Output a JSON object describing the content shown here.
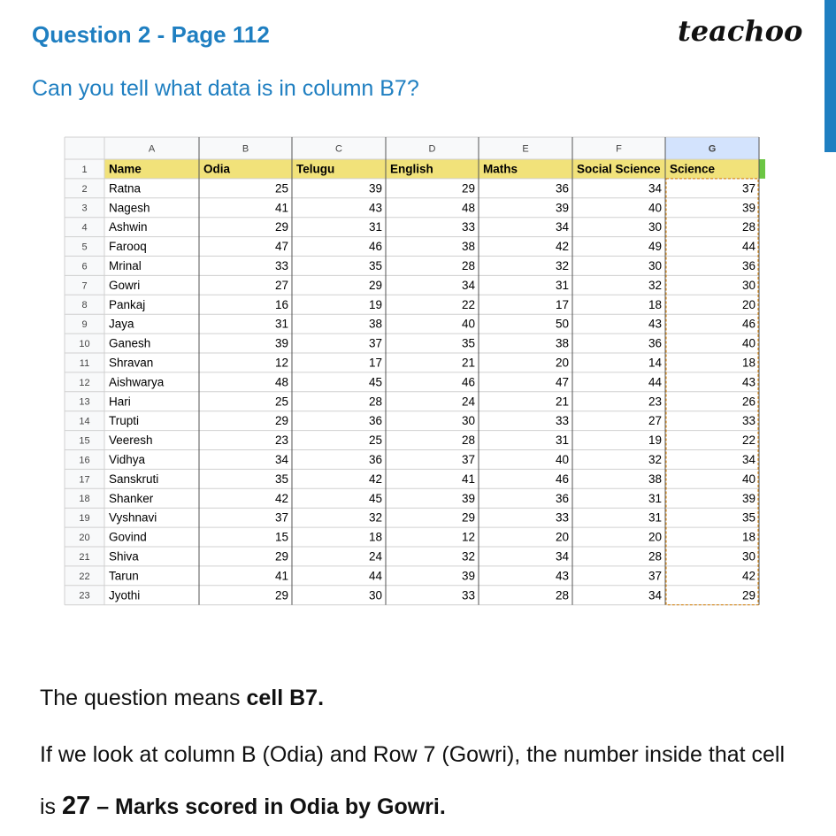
{
  "header": {
    "title": "Question 2 - Page 112",
    "logo": "teachoo"
  },
  "question": "Can you tell what data is in column B7?",
  "sheet": {
    "column_letters": [
      "A",
      "B",
      "C",
      "D",
      "E",
      "F",
      "G"
    ],
    "row_numbers": [
      1,
      2,
      3,
      4,
      5,
      6,
      7,
      8,
      9,
      10,
      11,
      12,
      13,
      14,
      15,
      16,
      17,
      18,
      19,
      20,
      21,
      22,
      23
    ],
    "header": [
      "Name",
      "Odia",
      "Telugu",
      "English",
      "Maths",
      "Social Science",
      "Science"
    ],
    "rows": [
      [
        "Ratna",
        25,
        39,
        29,
        36,
        34,
        37
      ],
      [
        "Nagesh",
        41,
        43,
        48,
        39,
        40,
        39
      ],
      [
        "Ashwin",
        29,
        31,
        33,
        34,
        30,
        28
      ],
      [
        "Farooq",
        47,
        46,
        38,
        42,
        49,
        44
      ],
      [
        "Mrinal",
        33,
        35,
        28,
        32,
        30,
        36
      ],
      [
        "Gowri",
        27,
        29,
        34,
        31,
        32,
        30
      ],
      [
        "Pankaj",
        16,
        19,
        22,
        17,
        18,
        20
      ],
      [
        "Jaya",
        31,
        38,
        40,
        50,
        43,
        46
      ],
      [
        "Ganesh",
        39,
        37,
        35,
        38,
        36,
        40
      ],
      [
        "Shravan",
        12,
        17,
        21,
        20,
        14,
        18
      ],
      [
        "Aishwarya",
        48,
        45,
        46,
        47,
        44,
        43
      ],
      [
        "Hari",
        25,
        28,
        24,
        21,
        23,
        26
      ],
      [
        "Trupti",
        29,
        36,
        30,
        33,
        27,
        33
      ],
      [
        "Veeresh",
        23,
        25,
        28,
        31,
        19,
        22
      ],
      [
        "Vidhya",
        34,
        36,
        37,
        40,
        32,
        34
      ],
      [
        "Sanskruti",
        35,
        42,
        41,
        46,
        38,
        40
      ],
      [
        "Shanker",
        42,
        45,
        39,
        36,
        31,
        39
      ],
      [
        "Vyshnavi",
        37,
        32,
        29,
        33,
        31,
        35
      ],
      [
        "Govind",
        15,
        18,
        12,
        20,
        20,
        18
      ],
      [
        "Shiva",
        29,
        24,
        32,
        34,
        28,
        30
      ],
      [
        "Tarun",
        41,
        44,
        39,
        43,
        37,
        42
      ],
      [
        "Jyothi",
        29,
        30,
        33,
        28,
        34,
        29
      ]
    ]
  },
  "answer": {
    "line1": {
      "text": "The question means ",
      "bold": "cell B7."
    },
    "line2": {
      "text": "If we look at column B (Odia) and Row 7 (Gowri), the number inside that cell is ",
      "number": "27",
      "bold": " – Marks scored in Odia by Gowri."
    }
  }
}
